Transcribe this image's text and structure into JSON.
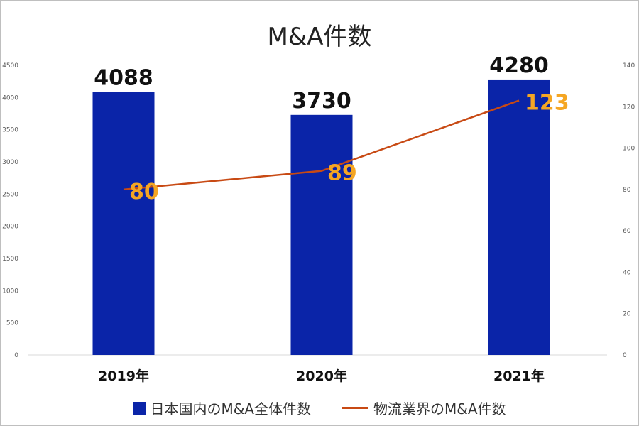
{
  "chart_data": {
    "type": "bar",
    "title": "M&A件数",
    "categories": [
      "2019年",
      "2020年",
      "2021年"
    ],
    "series": [
      {
        "name": "日本国内のM&A全体件数",
        "type": "bar",
        "axis": "left",
        "values": [
          4088,
          3730,
          4280
        ],
        "color": "#0a24a8"
      },
      {
        "name": "物流業界のM&A件数",
        "type": "line",
        "axis": "right",
        "values": [
          80,
          89,
          123
        ],
        "color": "#c84a14",
        "label_color": "#f5a623"
      }
    ],
    "y_left": {
      "range": [
        0,
        4500
      ],
      "ticks": [
        0,
        500,
        1000,
        1500,
        2000,
        2500,
        3000,
        3500,
        4000,
        4500
      ]
    },
    "y_right": {
      "range": [
        0,
        140
      ],
      "ticks": [
        0,
        20,
        40,
        60,
        80,
        100,
        120,
        140
      ]
    },
    "grid": false,
    "legend_position": "bottom"
  }
}
